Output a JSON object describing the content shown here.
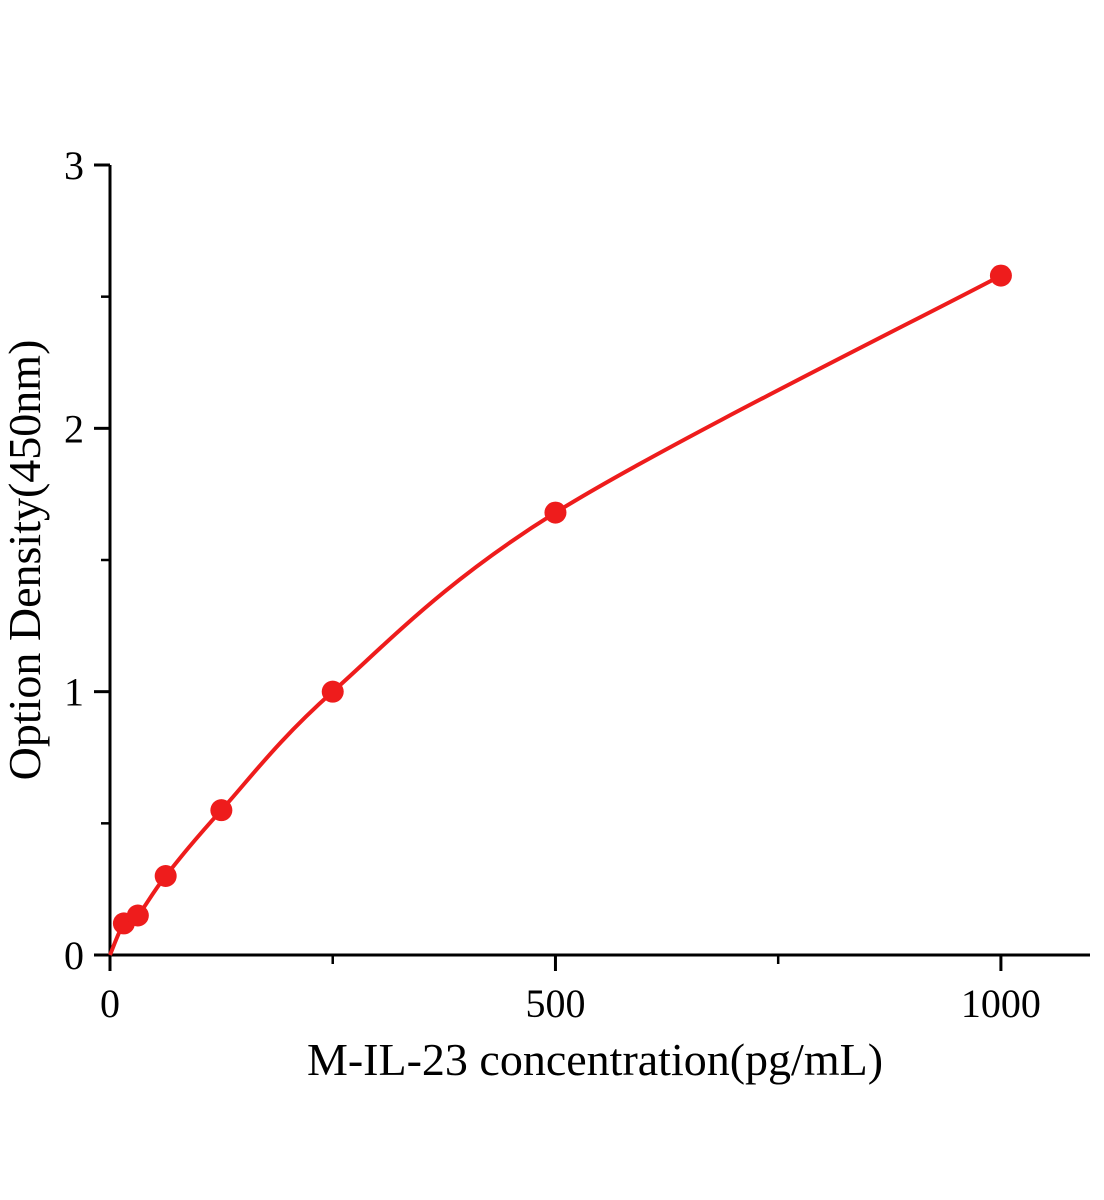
{
  "chart_data": {
    "type": "line",
    "title": "",
    "xlabel": "M-IL-23 concentration(pg/mL)",
    "ylabel": "Option Density(450nm)",
    "x": [
      15.6,
      31.25,
      62.5,
      125,
      250,
      500,
      1000
    ],
    "y": [
      0.12,
      0.15,
      0.3,
      0.55,
      1.0,
      1.68,
      2.58
    ],
    "curve_start_x": 0,
    "curve_start_y": 0,
    "xlim": [
      0,
      1100
    ],
    "ylim": [
      0,
      3
    ],
    "x_major_ticks": [
      0,
      500,
      1000
    ],
    "x_minor_ticks": [
      250,
      750
    ],
    "y_major_ticks": [
      0,
      1,
      2,
      3
    ],
    "y_minor_ticks": [
      0.5,
      1.5,
      2.5
    ],
    "series_color": "#ee1c1c",
    "axis_color": "#000000",
    "grid": false,
    "legend_position": "none"
  }
}
